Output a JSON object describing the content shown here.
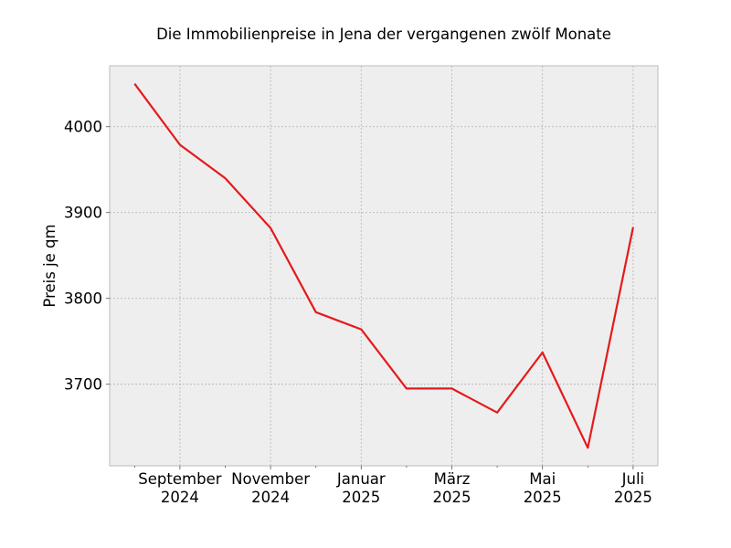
{
  "chart_data": {
    "type": "line",
    "title": "Die Immobilienpreise in Jena der vergangenen zwölf Monate",
    "xlabel": "",
    "ylabel": "Preis je qm",
    "x": [
      "2024-08",
      "2024-09",
      "2024-10",
      "2024-11",
      "2024-12",
      "2025-01",
      "2025-02",
      "2025-03",
      "2025-04",
      "2025-05",
      "2025-06",
      "2025-07"
    ],
    "series": [
      {
        "values": [
          4050,
          3979,
          3940,
          3882,
          3784,
          3764,
          3695,
          3695,
          3667,
          3737,
          3626,
          3883
        ]
      }
    ],
    "ylim": [
      3605,
      4071
    ],
    "yticks": [
      3700,
      3800,
      3900,
      4000
    ],
    "xticks": [
      {
        "x": "2024-09",
        "line1": "September",
        "line2": "2024"
      },
      {
        "x": "2024-11",
        "line1": "November",
        "line2": "2024"
      },
      {
        "x": "2025-01",
        "line1": "Januar",
        "line2": "2025"
      },
      {
        "x": "2025-03",
        "line1": "März",
        "line2": "2025"
      },
      {
        "x": "2025-05",
        "line1": "Mai",
        "line2": "2025"
      },
      {
        "x": "2025-07",
        "line1": "Juli",
        "line2": "2025"
      }
    ],
    "grid": true,
    "line_color": "#e41a1c",
    "plot_background": "#eeeeee"
  }
}
